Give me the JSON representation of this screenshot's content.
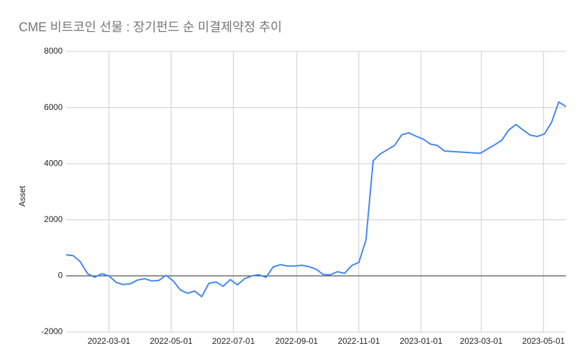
{
  "chart_data": {
    "type": "line",
    "title": "CME 비트코인 선물 : 장기펀드 순 미결제약정 추이",
    "y_label": "Asset",
    "x": [
      "2022-01-18",
      "2022-01-25",
      "2022-02-01",
      "2022-02-08",
      "2022-02-15",
      "2022-02-22",
      "2022-03-01",
      "2022-03-08",
      "2022-03-15",
      "2022-03-22",
      "2022-03-29",
      "2022-04-05",
      "2022-04-12",
      "2022-04-19",
      "2022-04-26",
      "2022-05-03",
      "2022-05-10",
      "2022-05-17",
      "2022-05-24",
      "2022-05-31",
      "2022-06-07",
      "2022-06-14",
      "2022-06-21",
      "2022-06-28",
      "2022-07-05",
      "2022-07-12",
      "2022-07-19",
      "2022-07-26",
      "2022-08-02",
      "2022-08-09",
      "2022-08-16",
      "2022-08-23",
      "2022-08-30",
      "2022-09-06",
      "2022-09-13",
      "2022-09-20",
      "2022-09-27",
      "2022-10-04",
      "2022-10-11",
      "2022-10-18",
      "2022-10-25",
      "2022-11-01",
      "2022-11-08",
      "2022-11-15",
      "2022-11-22",
      "2022-11-29",
      "2022-12-06",
      "2022-12-13",
      "2022-12-20",
      "2022-12-27",
      "2023-01-03",
      "2023-01-10",
      "2023-01-17",
      "2023-01-24",
      "2023-02-28",
      "2023-03-07",
      "2023-03-14",
      "2023-03-21",
      "2023-03-28",
      "2023-04-04",
      "2023-04-11",
      "2023-04-18",
      "2023-04-25",
      "2023-05-02",
      "2023-05-09",
      "2023-05-16",
      "2023-05-23"
    ],
    "series": [
      {
        "name": "Asset",
        "color": "#4285f4",
        "values": [
          750,
          720,
          500,
          80,
          -50,
          80,
          0,
          -230,
          -310,
          -280,
          -150,
          -100,
          -180,
          -160,
          20,
          -180,
          -500,
          -620,
          -540,
          -740,
          -260,
          -220,
          -370,
          -130,
          -320,
          -100,
          0,
          40,
          -50,
          320,
          400,
          350,
          350,
          380,
          330,
          240,
          50,
          40,
          150,
          90,
          370,
          480,
          1280,
          4100,
          4350,
          4500,
          4650,
          5030,
          5100,
          4980,
          4880,
          4700,
          4650,
          4450,
          4370,
          4520,
          4670,
          4830,
          5200,
          5400,
          5200,
          5020,
          4970,
          5060,
          5480,
          6200,
          6040
        ]
      }
    ],
    "xlim": [
      "2022-01-18",
      "2023-05-23"
    ],
    "xticks": [
      "2022-03-01",
      "2022-05-01",
      "2022-07-01",
      "2022-09-01",
      "2022-11-01",
      "2023-01-01",
      "2023-03-01",
      "2023-05-01"
    ],
    "ylim": [
      -2000,
      8000
    ],
    "yticks": [
      -2000,
      0,
      2000,
      4000,
      6000,
      8000
    ],
    "grid": true
  }
}
